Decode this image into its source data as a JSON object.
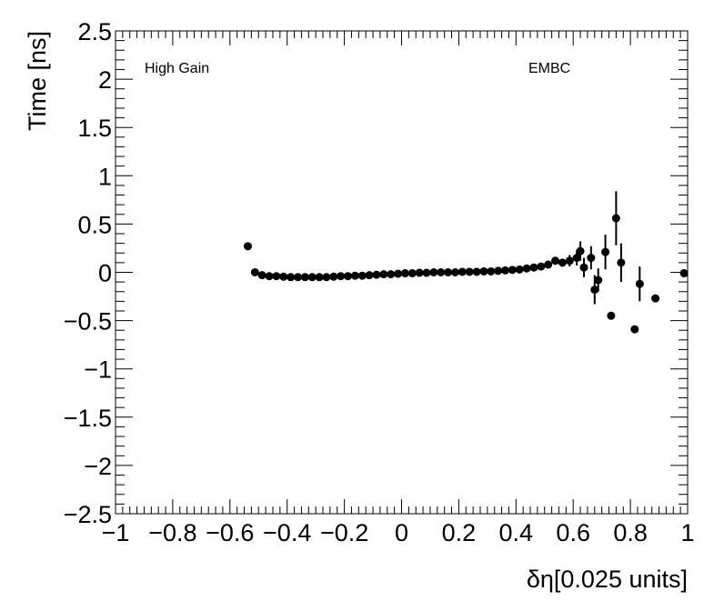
{
  "chart_data": {
    "type": "scatter",
    "title": "",
    "xlabel": "δη[0.025 units]",
    "ylabel": "Time [ns]",
    "xlim": [
      -1,
      1
    ],
    "ylim": [
      -2.5,
      2.5
    ],
    "x_major_ticks": [
      -1,
      -0.8,
      -0.6,
      -0.4,
      -0.2,
      0,
      0.2,
      0.4,
      0.6,
      0.8,
      1
    ],
    "x_tick_labels": [
      "−1",
      "−0.8",
      "−0.6",
      "−0.4",
      "−0.2",
      "0",
      "0.2",
      "0.4",
      "0.6",
      "0.8",
      "1"
    ],
    "y_major_ticks": [
      -2.5,
      -2,
      -1.5,
      -1,
      -0.5,
      0,
      0.5,
      1,
      1.5,
      2,
      2.5
    ],
    "y_tick_labels": [
      "−2.5",
      "−2",
      "−1.5",
      "−1",
      "−0.5",
      "0",
      "0.5",
      "1",
      "1.5",
      "2",
      "2.5"
    ],
    "grid": false,
    "annotations": [
      "High Gain",
      "EMBC"
    ],
    "marker_color": "#000000",
    "points": [
      {
        "x": -0.5375,
        "y": 0.27,
        "err": 0.02
      },
      {
        "x": -0.5125,
        "y": 0.0,
        "err": 0.01
      },
      {
        "x": -0.4875,
        "y": -0.03,
        "err": 0.01
      },
      {
        "x": -0.4625,
        "y": -0.04,
        "err": 0.01
      },
      {
        "x": -0.4375,
        "y": -0.04,
        "err": 0.01
      },
      {
        "x": -0.4125,
        "y": -0.045,
        "err": 0.01
      },
      {
        "x": -0.3875,
        "y": -0.05,
        "err": 0.01
      },
      {
        "x": -0.3625,
        "y": -0.05,
        "err": 0.01
      },
      {
        "x": -0.3375,
        "y": -0.05,
        "err": 0.01
      },
      {
        "x": -0.3125,
        "y": -0.05,
        "err": 0.01
      },
      {
        "x": -0.2875,
        "y": -0.05,
        "err": 0.01
      },
      {
        "x": -0.2625,
        "y": -0.05,
        "err": 0.01
      },
      {
        "x": -0.2375,
        "y": -0.045,
        "err": 0.01
      },
      {
        "x": -0.2125,
        "y": -0.04,
        "err": 0.01
      },
      {
        "x": -0.1875,
        "y": -0.04,
        "err": 0.01
      },
      {
        "x": -0.1625,
        "y": -0.035,
        "err": 0.01
      },
      {
        "x": -0.1375,
        "y": -0.035,
        "err": 0.01
      },
      {
        "x": -0.1125,
        "y": -0.03,
        "err": 0.01
      },
      {
        "x": -0.0875,
        "y": -0.025,
        "err": 0.01
      },
      {
        "x": -0.0625,
        "y": -0.02,
        "err": 0.01
      },
      {
        "x": -0.0375,
        "y": -0.02,
        "err": 0.01
      },
      {
        "x": -0.0125,
        "y": -0.015,
        "err": 0.01
      },
      {
        "x": 0.0125,
        "y": -0.01,
        "err": 0.01
      },
      {
        "x": 0.0375,
        "y": -0.01,
        "err": 0.01
      },
      {
        "x": 0.0625,
        "y": -0.005,
        "err": 0.01
      },
      {
        "x": 0.0875,
        "y": -0.005,
        "err": 0.01
      },
      {
        "x": 0.1125,
        "y": 0.0,
        "err": 0.01
      },
      {
        "x": 0.1375,
        "y": 0.0,
        "err": 0.01
      },
      {
        "x": 0.1625,
        "y": 0.0,
        "err": 0.01
      },
      {
        "x": 0.1875,
        "y": 0.0,
        "err": 0.01
      },
      {
        "x": 0.2125,
        "y": 0.005,
        "err": 0.01
      },
      {
        "x": 0.2375,
        "y": 0.005,
        "err": 0.01
      },
      {
        "x": 0.2625,
        "y": 0.005,
        "err": 0.01
      },
      {
        "x": 0.2875,
        "y": 0.01,
        "err": 0.01
      },
      {
        "x": 0.3125,
        "y": 0.01,
        "err": 0.01
      },
      {
        "x": 0.3375,
        "y": 0.015,
        "err": 0.01
      },
      {
        "x": 0.3625,
        "y": 0.02,
        "err": 0.01
      },
      {
        "x": 0.3875,
        "y": 0.025,
        "err": 0.01
      },
      {
        "x": 0.4125,
        "y": 0.03,
        "err": 0.01
      },
      {
        "x": 0.4375,
        "y": 0.04,
        "err": 0.01
      },
      {
        "x": 0.4625,
        "y": 0.05,
        "err": 0.01
      },
      {
        "x": 0.4875,
        "y": 0.06,
        "err": 0.015
      },
      {
        "x": 0.5125,
        "y": 0.08,
        "err": 0.02
      },
      {
        "x": 0.5375,
        "y": 0.12,
        "err": 0.03
      },
      {
        "x": 0.5625,
        "y": 0.1,
        "err": 0.04
      },
      {
        "x": 0.5875,
        "y": 0.12,
        "err": 0.06
      },
      {
        "x": 0.6125,
        "y": 0.15,
        "err": 0.08
      },
      {
        "x": 0.625,
        "y": 0.22,
        "err": 0.1
      },
      {
        "x": 0.6375,
        "y": 0.05,
        "err": 0.1
      },
      {
        "x": 0.6625,
        "y": 0.15,
        "err": 0.12
      },
      {
        "x": 0.675,
        "y": -0.18,
        "err": 0.15
      },
      {
        "x": 0.6875,
        "y": -0.08,
        "err": 0.12
      },
      {
        "x": 0.7125,
        "y": 0.21,
        "err": 0.18
      },
      {
        "x": 0.7325,
        "y": -0.45,
        "err": 0.0
      },
      {
        "x": 0.75,
        "y": 0.56,
        "err": 0.28
      },
      {
        "x": 0.7675,
        "y": 0.1,
        "err": 0.2
      },
      {
        "x": 0.815,
        "y": -0.59,
        "err": 0.0
      },
      {
        "x": 0.8325,
        "y": -0.12,
        "err": 0.18
      },
      {
        "x": 0.8875,
        "y": -0.27,
        "err": 0.0
      },
      {
        "x": 0.9875,
        "y": -0.01,
        "err": 0.0
      }
    ]
  }
}
